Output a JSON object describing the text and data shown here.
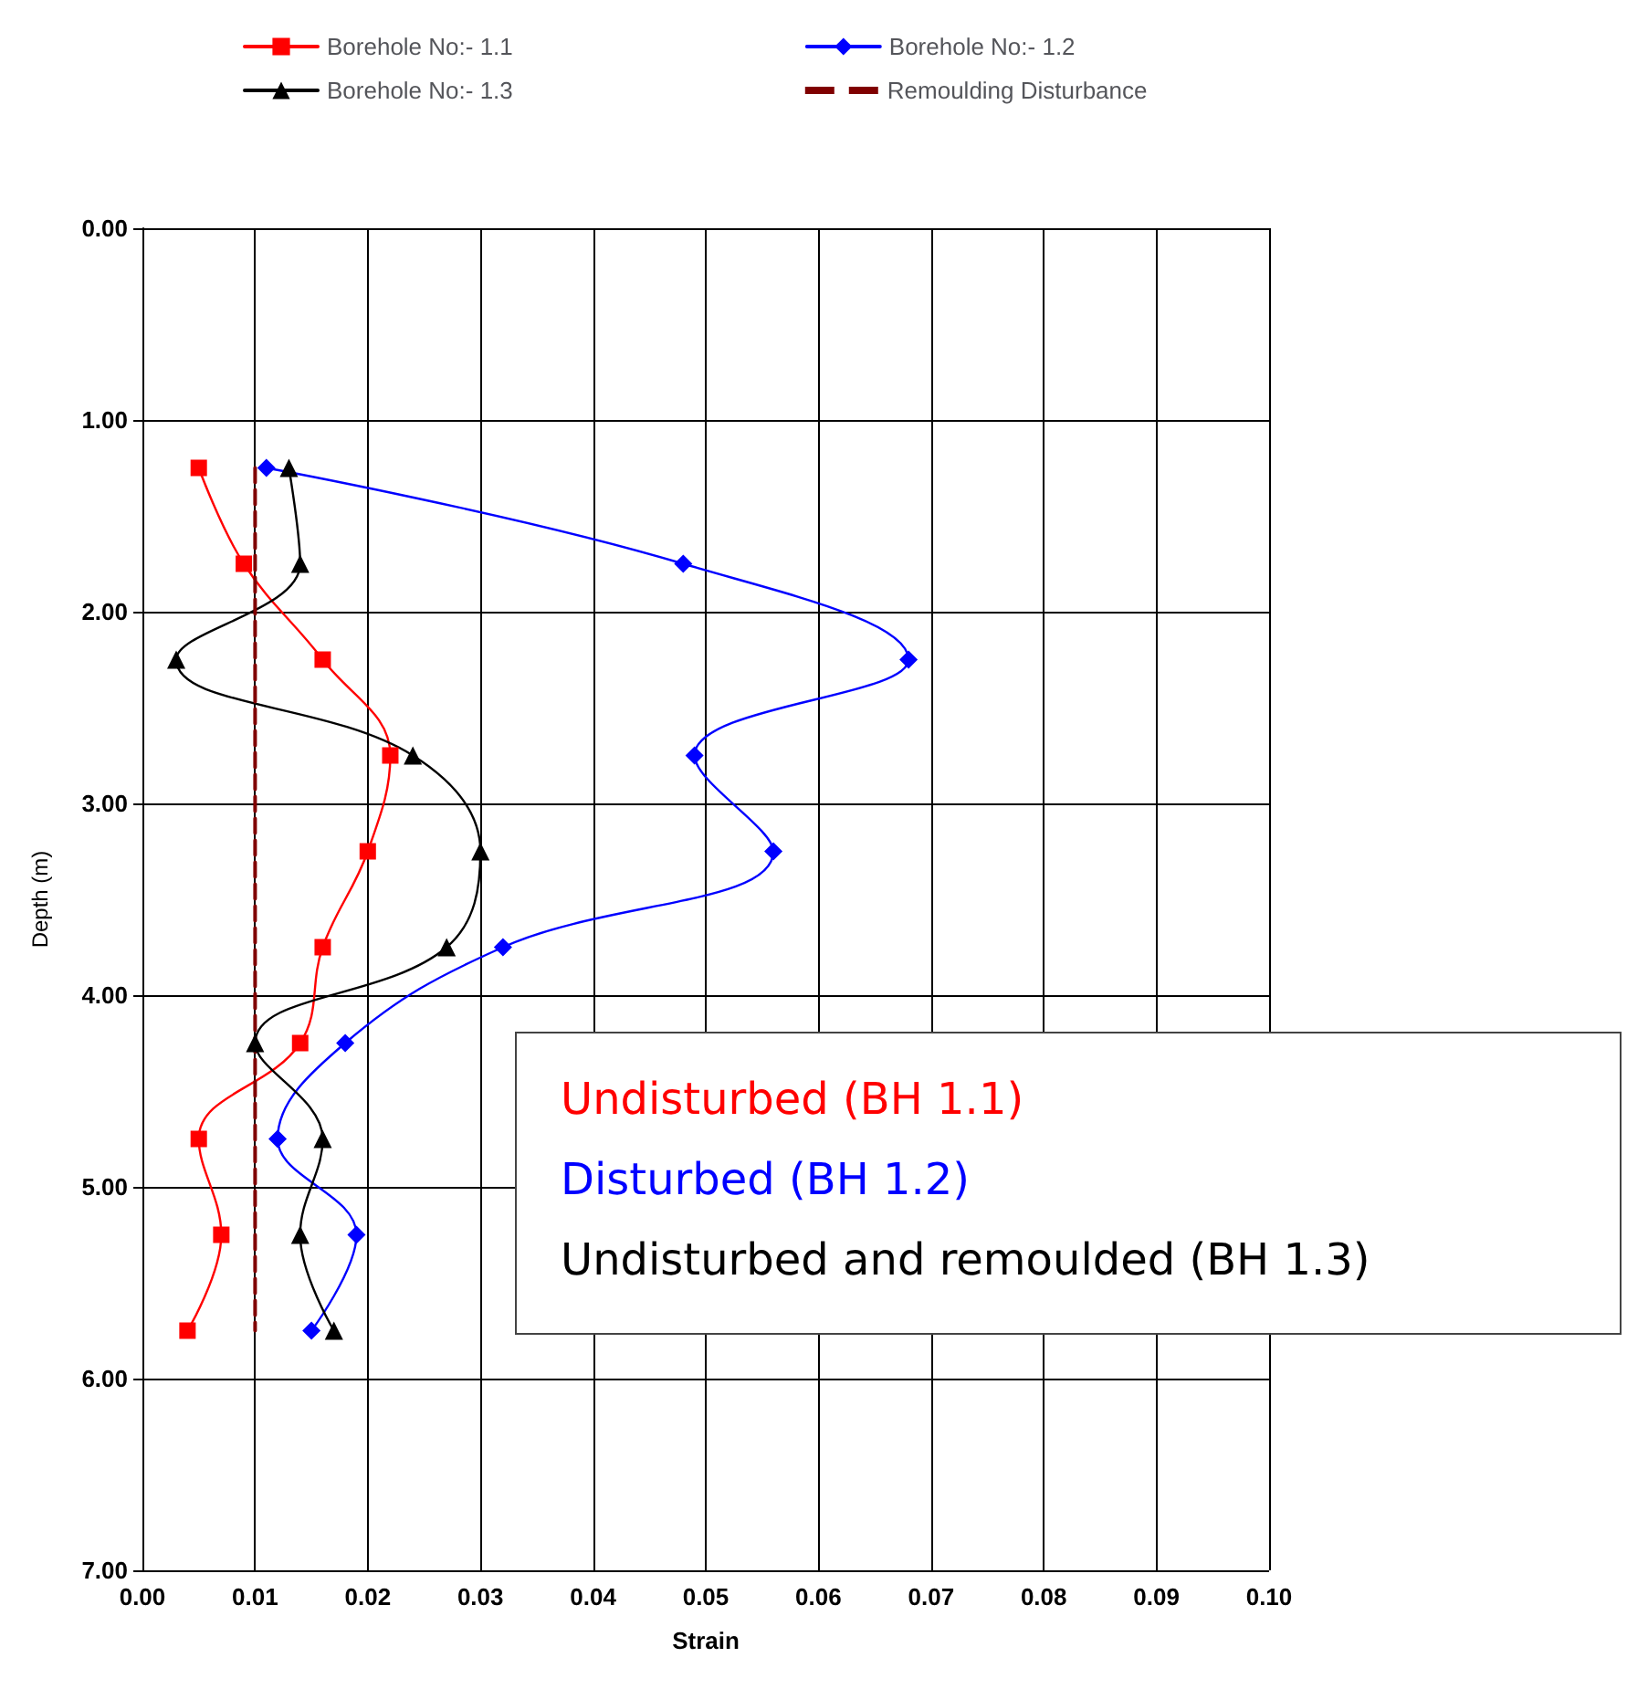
{
  "chart_data": {
    "type": "line",
    "xlabel": "Strain",
    "ylabel": "Depth (m)",
    "xlim": [
      0,
      0.1
    ],
    "xticks": [
      {
        "value": 0,
        "label": "0.00"
      },
      {
        "value": 0.01,
        "label": "0.01"
      },
      {
        "value": 0.02,
        "label": "0.02"
      },
      {
        "value": 0.03,
        "label": "0.03"
      },
      {
        "value": 0.04,
        "label": "0.04"
      },
      {
        "value": 0.05,
        "label": "0.05"
      },
      {
        "value": 0.06,
        "label": "0.06"
      },
      {
        "value": 0.07,
        "label": "0.07"
      },
      {
        "value": 0.08,
        "label": "0.08"
      },
      {
        "value": 0.09,
        "label": "0.09"
      },
      {
        "value": 0.1,
        "label": "0.10"
      }
    ],
    "ylim": [
      7,
      0
    ],
    "yticks": [
      {
        "value": 0,
        "label": "0.00"
      },
      {
        "value": 1,
        "label": "1.00"
      },
      {
        "value": 2,
        "label": "2.00"
      },
      {
        "value": 3,
        "label": "3.00"
      },
      {
        "value": 4,
        "label": "4.00"
      },
      {
        "value": 5,
        "label": "5.00"
      },
      {
        "value": 6,
        "label": "6.00"
      },
      {
        "value": 7,
        "label": "7.00"
      }
    ],
    "grid": true,
    "legend": "top",
    "series": [
      {
        "name": "Borehole No:- 1.1",
        "color": "#ff0000",
        "marker": "square",
        "x": [
          0.005,
          0.009,
          0.016,
          0.022,
          0.02,
          0.016,
          0.014,
          0.005,
          0.007,
          0.004
        ],
        "values": [
          1.25,
          1.75,
          2.25,
          2.75,
          3.25,
          3.75,
          4.25,
          4.75,
          5.25,
          5.75
        ]
      },
      {
        "name": "Borehole No:- 1.2",
        "color": "#0000ff",
        "marker": "diamond",
        "x": [
          0.011,
          0.048,
          0.068,
          0.049,
          0.056,
          0.032,
          0.018,
          0.012,
          0.019,
          0.015
        ],
        "values": [
          1.25,
          1.75,
          2.25,
          2.75,
          3.25,
          3.75,
          4.25,
          4.75,
          5.25,
          5.75
        ]
      },
      {
        "name": "Borehole No:- 1.3",
        "color": "#000000",
        "marker": "triangle",
        "x": [
          0.013,
          0.014,
          0.003,
          0.024,
          0.03,
          0.027,
          0.01,
          0.016,
          0.014,
          0.017
        ],
        "values": [
          1.25,
          1.75,
          2.25,
          2.75,
          3.25,
          3.75,
          4.25,
          4.75,
          5.25,
          5.75
        ]
      },
      {
        "name": "Remoulding Disturbance",
        "color": "#800000",
        "marker": "none",
        "line_style": "dashed",
        "x": [
          0.01,
          0.01
        ],
        "values": [
          1.25,
          5.75
        ]
      }
    ],
    "annotations": [
      "Undisturbed (BH 1.1)",
      "Disturbed (BH 1.2)",
      "Undisturbed and remoulded (BH 1.3)"
    ]
  }
}
